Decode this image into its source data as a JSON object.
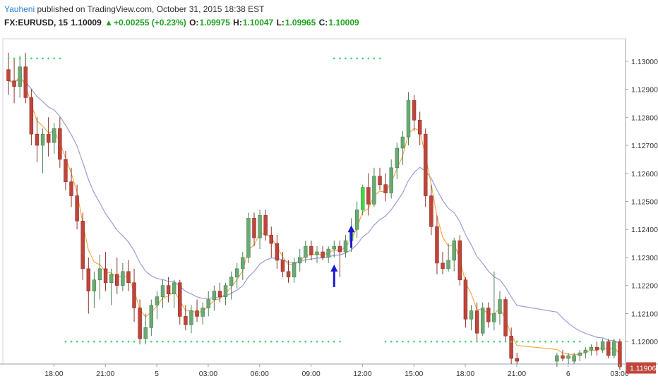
{
  "header": {
    "author": "Yauheni",
    "published": "published on TradingView.com, October 31, 2015 18:38 EST",
    "symbol": "FX:EURUSD, 15",
    "last": "1.10009",
    "change": "+0.00255 (+0.23%)",
    "o_label": "O:",
    "o": "1.09975",
    "h_label": "H:",
    "h": "1.10047",
    "l_label": "L:",
    "l": "1.09965",
    "c_label": "C:",
    "c": "1.10009"
  },
  "colors": {
    "up": "#6aaa73",
    "down": "#c0453b",
    "highlight": "#3fdc3f",
    "ema_fast": "#f2a53a",
    "ema_slow": "#9a9cd6",
    "dots": "#43d46b",
    "arrow": "#1a1ad6"
  },
  "chart_data": {
    "type": "candlestick",
    "ylim": [
      1.1192,
      1.1308
    ],
    "y_ticks": [
      "1.13000",
      "1.12900",
      "1.12800",
      "1.12700",
      "1.12600",
      "1.12500",
      "1.12400",
      "1.12300",
      "1.12200",
      "1.12100",
      "1.12000"
    ],
    "x_ticks": [
      "18:00",
      "21:00",
      "5",
      "03:00",
      "06:00",
      "09:00",
      "12:00",
      "15:00",
      "18:00",
      "21:00",
      "6",
      "03:00"
    ],
    "last_price_label": "1.11906",
    "candles": [
      {
        "o": 1.1297,
        "h": 1.1303,
        "l": 1.1288,
        "c": 1.1293
      },
      {
        "o": 1.1293,
        "h": 1.1301,
        "l": 1.1285,
        "c": 1.1291
      },
      {
        "o": 1.1291,
        "h": 1.1302,
        "l": 1.1287,
        "c": 1.1298
      },
      {
        "o": 1.1298,
        "h": 1.1303,
        "l": 1.1285,
        "c": 1.1287
      },
      {
        "o": 1.1287,
        "h": 1.129,
        "l": 1.127,
        "c": 1.1274
      },
      {
        "o": 1.1274,
        "h": 1.128,
        "l": 1.1264,
        "c": 1.127
      },
      {
        "o": 1.127,
        "h": 1.1276,
        "l": 1.126,
        "c": 1.1274
      },
      {
        "o": 1.1274,
        "h": 1.128,
        "l": 1.1266,
        "c": 1.1271
      },
      {
        "o": 1.1271,
        "h": 1.1278,
        "l": 1.1267,
        "c": 1.1276
      },
      {
        "o": 1.1276,
        "h": 1.128,
        "l": 1.1262,
        "c": 1.1265
      },
      {
        "o": 1.1265,
        "h": 1.1268,
        "l": 1.1254,
        "c": 1.1257
      },
      {
        "o": 1.1257,
        "h": 1.1262,
        "l": 1.1248,
        "c": 1.1252
      },
      {
        "o": 1.1252,
        "h": 1.1256,
        "l": 1.124,
        "c": 1.1243
      },
      {
        "o": 1.1243,
        "h": 1.1246,
        "l": 1.1222,
        "c": 1.1226
      },
      {
        "o": 1.1226,
        "h": 1.123,
        "l": 1.121,
        "c": 1.1218
      },
      {
        "o": 1.1218,
        "h": 1.1225,
        "l": 1.1212,
        "c": 1.1222
      },
      {
        "o": 1.1222,
        "h": 1.1231,
        "l": 1.1215,
        "c": 1.1226
      },
      {
        "o": 1.1226,
        "h": 1.1232,
        "l": 1.1218,
        "c": 1.1221
      },
      {
        "o": 1.1221,
        "h": 1.1226,
        "l": 1.1213,
        "c": 1.1224
      },
      {
        "o": 1.1224,
        "h": 1.123,
        "l": 1.1217,
        "c": 1.122
      },
      {
        "o": 1.122,
        "h": 1.1228,
        "l": 1.1218,
        "c": 1.1225
      },
      {
        "o": 1.1225,
        "h": 1.1229,
        "l": 1.1218,
        "c": 1.1221
      },
      {
        "o": 1.1221,
        "h": 1.1226,
        "l": 1.1207,
        "c": 1.1212
      },
      {
        "o": 1.1212,
        "h": 1.1215,
        "l": 1.1199,
        "c": 1.1201
      },
      {
        "o": 1.1201,
        "h": 1.121,
        "l": 1.1199,
        "c": 1.1205
      },
      {
        "o": 1.1205,
        "h": 1.1215,
        "l": 1.1202,
        "c": 1.1213
      },
      {
        "o": 1.1213,
        "h": 1.1218,
        "l": 1.1208,
        "c": 1.1216
      },
      {
        "o": 1.1216,
        "h": 1.1222,
        "l": 1.1212,
        "c": 1.122
      },
      {
        "o": 1.122,
        "h": 1.1223,
        "l": 1.1214,
        "c": 1.1217
      },
      {
        "o": 1.1217,
        "h": 1.1222,
        "l": 1.1212,
        "c": 1.1221
      },
      {
        "o": 1.1221,
        "h": 1.1222,
        "l": 1.1206,
        "c": 1.1209
      },
      {
        "o": 1.1209,
        "h": 1.1213,
        "l": 1.1204,
        "c": 1.1206
      },
      {
        "o": 1.1206,
        "h": 1.1213,
        "l": 1.1203,
        "c": 1.1211
      },
      {
        "o": 1.1211,
        "h": 1.1215,
        "l": 1.1207,
        "c": 1.1209
      },
      {
        "o": 1.1209,
        "h": 1.1214,
        "l": 1.1206,
        "c": 1.1212
      },
      {
        "o": 1.1212,
        "h": 1.1218,
        "l": 1.1209,
        "c": 1.1215
      },
      {
        "o": 1.1215,
        "h": 1.122,
        "l": 1.1211,
        "c": 1.1218
      },
      {
        "o": 1.1218,
        "h": 1.1221,
        "l": 1.1214,
        "c": 1.1216
      },
      {
        "o": 1.1216,
        "h": 1.1221,
        "l": 1.1213,
        "c": 1.122
      },
      {
        "o": 1.122,
        "h": 1.1225,
        "l": 1.1215,
        "c": 1.1223
      },
      {
        "o": 1.1223,
        "h": 1.1228,
        "l": 1.1219,
        "c": 1.1226
      },
      {
        "o": 1.1226,
        "h": 1.1232,
        "l": 1.1222,
        "c": 1.123
      },
      {
        "o": 1.123,
        "h": 1.1246,
        "l": 1.1228,
        "c": 1.1244
      },
      {
        "o": 1.1244,
        "h": 1.1246,
        "l": 1.1234,
        "c": 1.1237
      },
      {
        "o": 1.1237,
        "h": 1.1247,
        "l": 1.1233,
        "c": 1.1245
      },
      {
        "o": 1.1245,
        "h": 1.1247,
        "l": 1.1236,
        "c": 1.1238
      },
      {
        "o": 1.1238,
        "h": 1.1241,
        "l": 1.123,
        "c": 1.1235
      },
      {
        "o": 1.1235,
        "h": 1.1238,
        "l": 1.1226,
        "c": 1.1229
      },
      {
        "o": 1.1229,
        "h": 1.1232,
        "l": 1.1223,
        "c": 1.1225
      },
      {
        "o": 1.1225,
        "h": 1.1229,
        "l": 1.1221,
        "c": 1.1223
      },
      {
        "o": 1.1223,
        "h": 1.123,
        "l": 1.1221,
        "c": 1.1228
      },
      {
        "o": 1.1228,
        "h": 1.1233,
        "l": 1.1225,
        "c": 1.123
      },
      {
        "o": 1.123,
        "h": 1.1236,
        "l": 1.1228,
        "c": 1.1234
      },
      {
        "o": 1.1234,
        "h": 1.1236,
        "l": 1.1229,
        "c": 1.1231
      },
      {
        "o": 1.1231,
        "h": 1.1234,
        "l": 1.1228,
        "c": 1.1232
      },
      {
        "o": 1.1232,
        "h": 1.1234,
        "l": 1.1229,
        "c": 1.123
      },
      {
        "o": 1.123,
        "h": 1.1234,
        "l": 1.1228,
        "c": 1.1233
      },
      {
        "o": 1.1233,
        "h": 1.1236,
        "l": 1.123,
        "c": 1.1234
      },
      {
        "o": 1.1234,
        "h": 1.1236,
        "l": 1.1223,
        "c": 1.1232
      },
      {
        "o": 1.1232,
        "h": 1.1238,
        "l": 1.123,
        "c": 1.1236
      },
      {
        "o": 1.1236,
        "h": 1.1244,
        "l": 1.1232,
        "c": 1.124
      },
      {
        "o": 1.124,
        "h": 1.125,
        "l": 1.1237,
        "c": 1.1247
      },
      {
        "o": 1.1247,
        "h": 1.1256,
        "l": 1.1245,
        "c": 1.1255,
        "hl": true
      },
      {
        "o": 1.1255,
        "h": 1.126,
        "l": 1.1245,
        "c": 1.1249
      },
      {
        "o": 1.1249,
        "h": 1.1262,
        "l": 1.1248,
        "c": 1.1259
      },
      {
        "o": 1.1259,
        "h": 1.1262,
        "l": 1.1254,
        "c": 1.1256
      },
      {
        "o": 1.1256,
        "h": 1.126,
        "l": 1.125,
        "c": 1.1253
      },
      {
        "o": 1.1253,
        "h": 1.1265,
        "l": 1.1251,
        "c": 1.1262
      },
      {
        "o": 1.1262,
        "h": 1.1271,
        "l": 1.1258,
        "c": 1.1269
      },
      {
        "o": 1.1269,
        "h": 1.1275,
        "l": 1.1263,
        "c": 1.1273
      },
      {
        "o": 1.1273,
        "h": 1.1289,
        "l": 1.127,
        "c": 1.1286
      },
      {
        "o": 1.1286,
        "h": 1.1288,
        "l": 1.1275,
        "c": 1.1279
      },
      {
        "o": 1.1279,
        "h": 1.1282,
        "l": 1.127,
        "c": 1.1274
      },
      {
        "o": 1.1274,
        "h": 1.1276,
        "l": 1.1248,
        "c": 1.1252
      },
      {
        "o": 1.1252,
        "h": 1.1256,
        "l": 1.1238,
        "c": 1.1241
      },
      {
        "o": 1.1241,
        "h": 1.1245,
        "l": 1.1224,
        "c": 1.1228
      },
      {
        "o": 1.1228,
        "h": 1.1232,
        "l": 1.1224,
        "c": 1.1226
      },
      {
        "o": 1.1226,
        "h": 1.1235,
        "l": 1.1225,
        "c": 1.1229
      },
      {
        "o": 1.1229,
        "h": 1.1237,
        "l": 1.1225,
        "c": 1.1236
      },
      {
        "o": 1.1236,
        "h": 1.1238,
        "l": 1.122,
        "c": 1.1222
      },
      {
        "o": 1.1222,
        "h": 1.1223,
        "l": 1.1205,
        "c": 1.1208
      },
      {
        "o": 1.1208,
        "h": 1.1213,
        "l": 1.1204,
        "c": 1.1211
      },
      {
        "o": 1.1211,
        "h": 1.1214,
        "l": 1.12,
        "c": 1.1203
      },
      {
        "o": 1.1203,
        "h": 1.1214,
        "l": 1.1202,
        "c": 1.1212
      },
      {
        "o": 1.1212,
        "h": 1.1214,
        "l": 1.1205,
        "c": 1.1207
      },
      {
        "o": 1.1207,
        "h": 1.1225,
        "l": 1.1204,
        "c": 1.121
      },
      {
        "o": 1.121,
        "h": 1.1218,
        "l": 1.1206,
        "c": 1.1215
      },
      {
        "o": 1.1215,
        "h": 1.1216,
        "l": 1.12,
        "c": 1.1202
      },
      {
        "o": 1.1202,
        "h": 1.1205,
        "l": 1.1192,
        "c": 1.1194
      },
      {
        "o": 1.1194,
        "h": 1.1196,
        "l": 1.1192,
        "c": 1.1193
      }
    ],
    "tail_candles": [
      {
        "o": 1.1193,
        "h": 1.1196,
        "l": 1.1191,
        "c": 1.1195
      },
      {
        "o": 1.1195,
        "h": 1.1197,
        "l": 1.1193,
        "c": 1.1194
      },
      {
        "o": 1.1194,
        "h": 1.1196,
        "l": 1.1192,
        "c": 1.1195
      },
      {
        "o": 1.1193,
        "h": 1.1196,
        "l": 1.1192,
        "c": 1.1195
      },
      {
        "o": 1.1195,
        "h": 1.1197,
        "l": 1.1193,
        "c": 1.1196
      },
      {
        "o": 1.1196,
        "h": 1.1198,
        "l": 1.1194,
        "c": 1.1197
      },
      {
        "o": 1.1197,
        "h": 1.1199,
        "l": 1.1195,
        "c": 1.1198
      },
      {
        "o": 1.1198,
        "h": 1.12,
        "l": 1.1195,
        "c": 1.1197
      },
      {
        "o": 1.1197,
        "h": 1.1201,
        "l": 1.1196,
        "c": 1.12
      },
      {
        "o": 1.12,
        "h": 1.1201,
        "l": 1.1194,
        "c": 1.1195
      },
      {
        "o": 1.1195,
        "h": 1.1201,
        "l": 1.1194,
        "c": 1.12
      },
      {
        "o": 1.12,
        "h": 1.1201,
        "l": 1.119,
        "c": 1.1191
      }
    ],
    "arrows": [
      {
        "index": 57,
        "price": 1.1227
      },
      {
        "index": 60,
        "price": 1.1241
      }
    ],
    "dot_rows": [
      {
        "price": 1.1301,
        "from": 0,
        "to": 9
      },
      {
        "price": 1.1301,
        "from": 57,
        "to": 65
      },
      {
        "price": 1.12,
        "from": 10,
        "to": 58
      },
      {
        "price": 1.12,
        "from": 66,
        "to": 100
      }
    ]
  }
}
